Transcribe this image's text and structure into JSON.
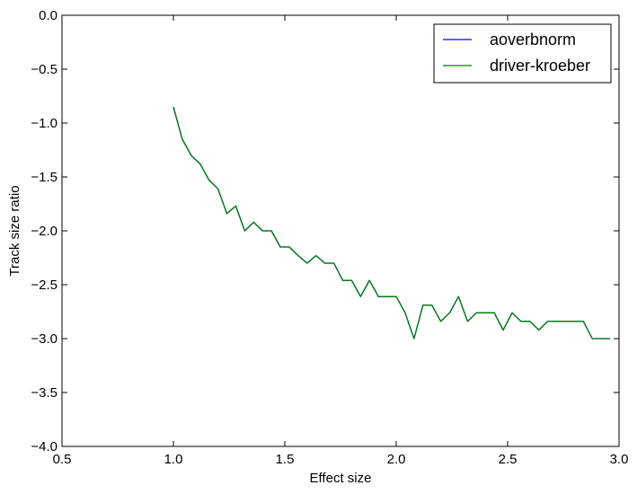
{
  "chart_data": {
    "type": "line",
    "xlabel": "Effect size",
    "ylabel": "Track size ratio",
    "xlim": [
      0.5,
      3.0
    ],
    "ylim": [
      -4.0,
      0.0
    ],
    "xticks": [
      "0.5",
      "1.0",
      "1.5",
      "2.0",
      "2.5",
      "3.0"
    ],
    "yticks": [
      "0.0",
      "−0.5",
      "−1.0",
      "−1.5",
      "−2.0",
      "−2.5",
      "−3.0",
      "−3.5",
      "−4.0"
    ],
    "grid": false,
    "legend_position": "top-right",
    "series": [
      {
        "name": "aoverbnorm",
        "color": "#0000ff",
        "x": [
          1.0,
          1.04,
          1.08,
          1.12,
          1.16,
          1.2,
          1.24,
          1.28,
          1.32,
          1.36,
          1.4,
          1.44,
          1.48,
          1.52,
          1.56,
          1.6,
          1.64,
          1.68,
          1.72,
          1.76,
          1.8,
          1.84,
          1.88,
          1.92,
          1.96,
          2.0,
          2.04,
          2.08,
          2.12,
          2.16,
          2.2,
          2.24,
          2.28,
          2.32,
          2.36,
          2.4,
          2.44,
          2.48,
          2.52,
          2.56,
          2.6,
          2.64,
          2.68,
          2.72,
          2.76,
          2.8,
          2.84,
          2.88,
          2.92,
          2.96
        ],
        "y": [
          -0.85,
          -1.15,
          -1.3,
          -1.38,
          -1.53,
          -1.61,
          -1.84,
          -1.77,
          -2.0,
          -1.92,
          -2.0,
          -2.0,
          -2.15,
          -2.15,
          -2.23,
          -2.3,
          -2.23,
          -2.3,
          -2.3,
          -2.46,
          -2.46,
          -2.61,
          -2.46,
          -2.61,
          -2.61,
          -2.61,
          -2.76,
          -3.0,
          -2.69,
          -2.69,
          -2.84,
          -2.76,
          -2.61,
          -2.84,
          -2.76,
          -2.76,
          -2.76,
          -2.92,
          -2.76,
          -2.84,
          -2.84,
          -2.92,
          -2.84,
          -2.84,
          -2.84,
          -2.84,
          -2.84,
          -3.0,
          -3.0,
          -3.0
        ]
      },
      {
        "name": "driver-kroeber",
        "color": "#008000",
        "x": [
          1.0,
          1.04,
          1.08,
          1.12,
          1.16,
          1.2,
          1.24,
          1.28,
          1.32,
          1.36,
          1.4,
          1.44,
          1.48,
          1.52,
          1.56,
          1.6,
          1.64,
          1.68,
          1.72,
          1.76,
          1.8,
          1.84,
          1.88,
          1.92,
          1.96,
          2.0,
          2.04,
          2.08,
          2.12,
          2.16,
          2.2,
          2.24,
          2.28,
          2.32,
          2.36,
          2.4,
          2.44,
          2.48,
          2.52,
          2.56,
          2.6,
          2.64,
          2.68,
          2.72,
          2.76,
          2.8,
          2.84,
          2.88,
          2.92,
          2.96
        ],
        "y": [
          -0.85,
          -1.15,
          -1.3,
          -1.38,
          -1.53,
          -1.61,
          -1.84,
          -1.77,
          -2.0,
          -1.92,
          -2.0,
          -2.0,
          -2.15,
          -2.15,
          -2.23,
          -2.3,
          -2.23,
          -2.3,
          -2.3,
          -2.46,
          -2.46,
          -2.61,
          -2.46,
          -2.61,
          -2.61,
          -2.61,
          -2.76,
          -3.0,
          -2.69,
          -2.69,
          -2.84,
          -2.76,
          -2.61,
          -2.84,
          -2.76,
          -2.76,
          -2.76,
          -2.92,
          -2.76,
          -2.84,
          -2.84,
          -2.92,
          -2.84,
          -2.84,
          -2.84,
          -2.84,
          -2.84,
          -3.0,
          -3.0,
          -3.0
        ]
      }
    ]
  }
}
